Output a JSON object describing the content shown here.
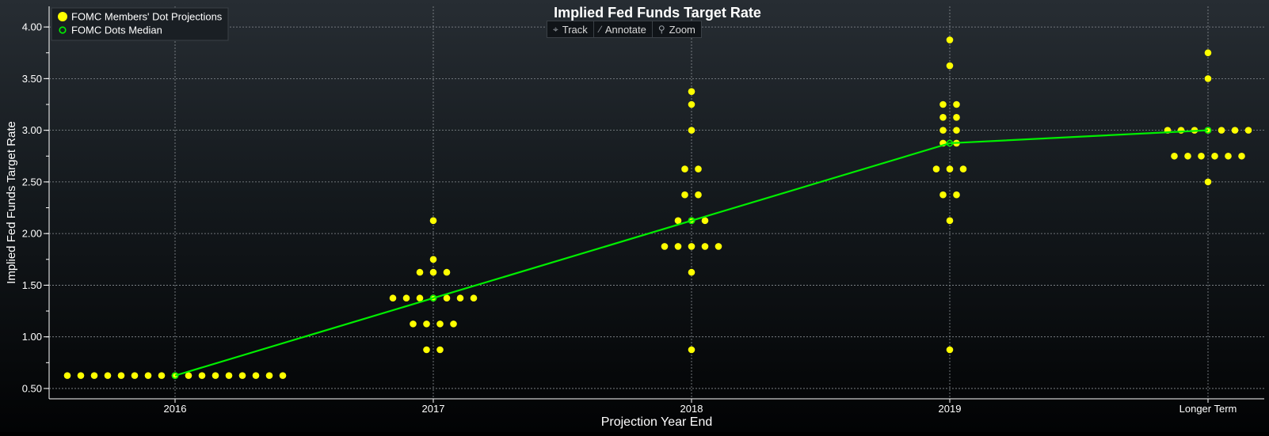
{
  "chart_data": {
    "type": "scatter",
    "title": "Implied Fed Funds Target Rate",
    "xlabel": "Projection Year End",
    "ylabel": "Implied Fed Funds Target Rate",
    "categories": [
      "2016",
      "2017",
      "2018",
      "2019",
      "Longer Term"
    ],
    "ylim": [
      0.4,
      4.2
    ],
    "yticks": [
      "0.50",
      "1.00",
      "1.50",
      "2.00",
      "2.50",
      "3.00",
      "3.50",
      "4.00"
    ],
    "grid": true,
    "legend_position": "top-left",
    "series": [
      {
        "name": "FOMC Members' Dot Projections",
        "kind": "dots",
        "color": "#ffff00",
        "points": [
          {
            "category": "2016",
            "values": [
              0.625,
              0.625,
              0.625,
              0.625,
              0.625,
              0.625,
              0.625,
              0.625,
              0.625,
              0.625,
              0.625,
              0.625,
              0.625,
              0.625,
              0.625,
              0.625,
              0.625
            ]
          },
          {
            "category": "2017",
            "values": [
              0.875,
              0.875,
              1.125,
              1.125,
              1.125,
              1.125,
              1.375,
              1.375,
              1.375,
              1.375,
              1.375,
              1.375,
              1.375,
              1.625,
              1.625,
              1.625,
              1.75,
              2.125
            ]
          },
          {
            "category": "2018",
            "values": [
              0.875,
              1.625,
              1.875,
              1.875,
              1.875,
              1.875,
              1.875,
              2.125,
              2.125,
              2.125,
              2.375,
              2.375,
              2.625,
              2.625,
              3.0,
              3.25,
              3.375
            ]
          },
          {
            "category": "2019",
            "values": [
              0.875,
              2.125,
              2.375,
              2.375,
              2.625,
              2.625,
              2.625,
              2.875,
              2.875,
              3.0,
              3.0,
              3.125,
              3.125,
              3.25,
              3.25,
              3.625,
              3.875
            ]
          },
          {
            "category": "Longer Term",
            "values": [
              2.5,
              2.75,
              2.75,
              2.75,
              2.75,
              2.75,
              2.75,
              3.0,
              3.0,
              3.0,
              3.0,
              3.0,
              3.0,
              3.0,
              3.5,
              3.75
            ]
          }
        ]
      },
      {
        "name": "FOMC Dots Median",
        "kind": "line",
        "color": "#00ee00",
        "values": [
          0.625,
          1.375,
          2.125,
          2.875,
          3.0
        ]
      }
    ]
  },
  "toolbar": {
    "track_label": "Track",
    "annotate_label": "Annotate",
    "zoom_label": "Zoom",
    "track_icon": "crosshair-icon",
    "annotate_icon": "pencil-icon",
    "zoom_icon": "magnifier-icon"
  },
  "colors": {
    "dot": "#ffff00",
    "median": "#00ee00",
    "grid": "#8a8f94",
    "axis": "#ffffff",
    "text": "#ffffff"
  }
}
